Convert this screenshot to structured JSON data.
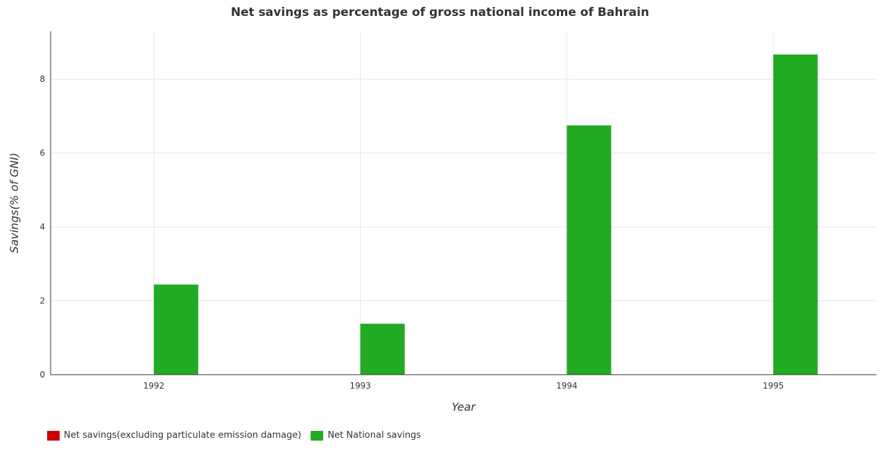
{
  "chart_data": {
    "type": "bar",
    "title": "Net savings as percentage of gross national income of Bahrain",
    "xlabel": "Year",
    "ylabel": "Savings(% of GNI)",
    "categories": [
      "1992",
      "1993",
      "1994",
      "1995"
    ],
    "ylim": [
      0,
      9.3
    ],
    "yticks": [
      "0",
      "2",
      "4",
      "6",
      "8"
    ],
    "grid": true,
    "legend_position": "bottom-left",
    "series": [
      {
        "name": "Net savings(excluding particulate emission damage)",
        "color": "#cc0000",
        "values": [
          0,
          0,
          0,
          0
        ]
      },
      {
        "name": "Net National savings",
        "color": "#22aa22",
        "values": [
          2.44,
          1.38,
          6.75,
          8.67
        ]
      }
    ]
  }
}
